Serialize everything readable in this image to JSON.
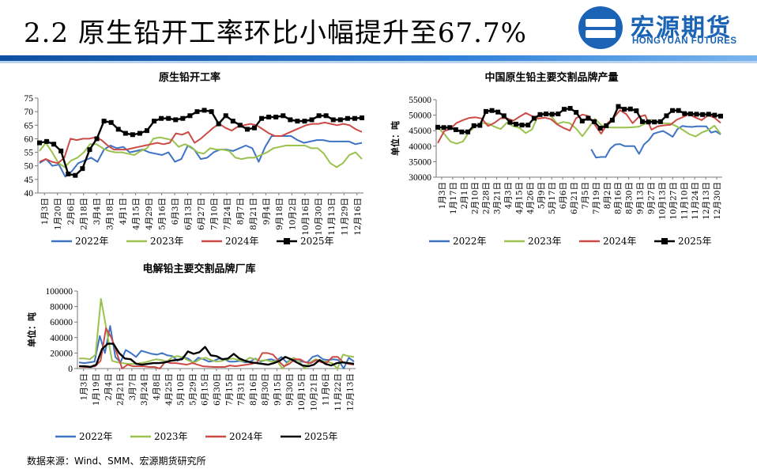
{
  "slide": {
    "title": "2.2 原生铅开工率环比小幅提升至67.7%",
    "source": "数据来源：Wind、SMM、宏源期货研究所"
  },
  "logo": {
    "name_cn": "宏源期货",
    "name_en": "HONGYUAN FUTURES",
    "color": "#1b63b5"
  },
  "colors": {
    "2022年": "#3f73c4",
    "2023年": "#9bc24f",
    "2024年": "#cc4b47",
    "2025年": "#000000"
  },
  "chart_data": [
    {
      "id": "operating-rate",
      "type": "line",
      "title": "原生铅开工率",
      "ylabel": "",
      "ylim": [
        40,
        75
      ],
      "yticks": [
        40,
        45,
        50,
        55,
        60,
        65,
        70,
        75
      ],
      "x_tick_labels": [
        "1月3日",
        "1月20日",
        "2月6日",
        "2月18日",
        "3月4日",
        "3月18日",
        "4月1日",
        "4月15日",
        "4月29日",
        "5月16日",
        "6月3日",
        "6月13日",
        "6月27日",
        "7月10日",
        "7月24日",
        "8月7日",
        "8月21日",
        "9月4日",
        "9月18日",
        "10月2日",
        "10月16日",
        "10月30日",
        "11月13日",
        "11月29日",
        "12月16日"
      ],
      "legend_position": "bottom",
      "series": [
        {
          "name": "2022年",
          "values": [
            51.0,
            52.5,
            50.0,
            50.5,
            46.0,
            48.0,
            51.0,
            52.0,
            53.0,
            51.5,
            56.0,
            57.5,
            56.5,
            57.0,
            55.0,
            55.5,
            56.0,
            55.0,
            54.5,
            54.0,
            55.0,
            51.5,
            52.5,
            57.5,
            56.0,
            52.5,
            53.0,
            55.0,
            56.0,
            56.0,
            55.5,
            56.5,
            57.5,
            56.5,
            51.5,
            57.0,
            61.0,
            61.0,
            61.0,
            61.0,
            59.5,
            58.5,
            59.0,
            59.5,
            59.5,
            59.0,
            59.0,
            59.0,
            59.0,
            58.0,
            58.5
          ]
        },
        {
          "name": "2023年",
          "values": [
            55.5,
            58.5,
            55.0,
            51.0,
            49.5,
            52.0,
            53.0,
            55.0,
            58.0,
            58.0,
            56.5,
            55.5,
            55.0,
            55.0,
            54.5,
            54.0,
            55.5,
            56.5,
            60.0,
            60.5,
            60.0,
            59.5,
            57.0,
            58.0,
            57.0,
            55.0,
            54.5,
            56.5,
            56.0,
            56.0,
            55.5,
            53.0,
            52.5,
            53.0,
            53.0,
            54.0,
            55.0,
            56.5,
            57.0,
            57.5,
            57.5,
            57.5,
            57.5,
            56.5,
            56.5,
            54.5,
            51.0,
            49.5,
            51.0,
            54.0,
            55.0,
            52.5
          ]
        },
        {
          "name": "2024年",
          "values": [
            51.5,
            52.5,
            51.5,
            51.0,
            53.0,
            60.0,
            59.5,
            60.0,
            60.0,
            60.5,
            59.5,
            57.5,
            56.0,
            56.0,
            56.0,
            56.5,
            57.0,
            57.5,
            58.0,
            58.5,
            58.0,
            58.5,
            62.0,
            61.5,
            62.5,
            58.5,
            60.0,
            62.0,
            64.0,
            65.5,
            64.0,
            63.0,
            64.5,
            65.0,
            65.5,
            65.0,
            63.5,
            62.0,
            61.0,
            61.0,
            62.0,
            63.0,
            64.0,
            65.0,
            65.5,
            65.5,
            66.0,
            65.5,
            65.0,
            65.5,
            65.0,
            63.5,
            62.5
          ]
        },
        {
          "name": "2025年",
          "values": [
            58.5,
            59.0,
            58.0,
            55.5,
            47.0,
            46.5,
            49.0,
            56.0,
            60.0,
            66.5,
            66.0,
            63.5,
            62.0,
            61.5,
            62.0,
            63.0,
            66.5,
            67.5,
            67.5,
            67.0,
            67.5,
            68.5,
            70.0,
            70.5,
            70.0,
            65.5,
            68.5,
            66.5,
            65.0,
            63.5,
            64.0,
            67.5,
            68.0,
            68.0,
            68.5,
            67.0,
            66.5,
            66.5,
            67.0,
            68.5,
            68.5,
            67.0,
            67.0,
            67.5,
            67.5,
            67.7
          ]
        }
      ]
    },
    {
      "id": "branded-output",
      "type": "line",
      "title": "中国原生铅主要交割品牌产量",
      "ylabel": "单位：吨",
      "ylim": [
        30000,
        55000
      ],
      "yticks": [
        30000,
        35000,
        40000,
        45000,
        50000,
        55000
      ],
      "x_tick_labels": [
        "1月3日",
        "1月17日",
        "2月1日",
        "2月10日",
        "2月28日",
        "3月21日",
        "4月3日",
        "4月15日",
        "4月26日",
        "5月9日",
        "5月17日",
        "6月6日",
        "6月21日",
        "7月5日",
        "7月19日",
        "8月2日",
        "8月16日",
        "8月30日",
        "9月13日",
        "9月27日",
        "10月13日",
        "10月27日",
        "11月10日",
        "11月24日",
        "12月13日",
        "12月30日"
      ],
      "legend_position": "bottom",
      "series": [
        {
          "name": "2022年",
          "values": [
            null,
            null,
            null,
            null,
            null,
            null,
            null,
            null,
            null,
            null,
            null,
            null,
            null,
            null,
            null,
            null,
            null,
            null,
            null,
            null,
            null,
            null,
            null,
            null,
            null,
            null,
            null,
            null,
            null,
            null,
            null,
            null,
            39000,
            36300,
            36500,
            36500,
            39200,
            40500,
            40700,
            40000,
            40000,
            40000,
            37500,
            40500,
            41900,
            44000,
            44500,
            44900,
            44000,
            43000,
            45500,
            46500,
            46300,
            46200,
            46400,
            46400,
            46400,
            44400,
            44800,
            43800
          ]
        },
        {
          "name": "2023年",
          "values": [
            46000,
            44000,
            41500,
            40800,
            41500,
            44600,
            46400,
            47500,
            47300,
            46300,
            45500,
            47600,
            46400,
            45900,
            44200,
            45400,
            49900,
            50700,
            49800,
            47200,
            47800,
            47400,
            45700,
            43200,
            45900,
            48800,
            46800,
            46000,
            46000,
            46000,
            46000,
            46100,
            46300,
            47300,
            48500,
            47500,
            47400,
            47300,
            46400,
            45200,
            43900,
            43100,
            44400,
            45200,
            46600,
            44000
          ]
        },
        {
          "name": "2024年",
          "values": [
            41000,
            44800,
            45600,
            47500,
            48400,
            49100,
            49300,
            48900,
            46500,
            47500,
            49000,
            49000,
            48200,
            49500,
            50700,
            49700,
            48900,
            49200,
            48700,
            47000,
            45900,
            45000,
            49000,
            50200,
            49700,
            46800,
            44000,
            47400,
            49200,
            51600,
            50300,
            47400,
            49500,
            50000,
            45300,
            46400,
            46700,
            46900,
            48500,
            49400,
            50300,
            49200,
            48400,
            50000,
            49200,
            47500
          ]
        },
        {
          "name": "2025年",
          "values": [
            46100,
            46000,
            46000,
            45300,
            44600,
            44600,
            46600,
            46700,
            51200,
            51500,
            51000,
            49800,
            47700,
            47100,
            46800,
            46800,
            49000,
            50200,
            50400,
            50300,
            50400,
            51900,
            52200,
            50900,
            48100,
            49000,
            47900,
            45800,
            46600,
            48400,
            52800,
            51900,
            52000,
            51400,
            47900,
            47800,
            47800,
            47900,
            49800,
            51500,
            51500,
            50500,
            50400,
            50300,
            50200,
            50300,
            50000,
            49700
          ]
        }
      ]
    },
    {
      "id": "branded-inventory",
      "type": "line",
      "title": "电解铅主要交割品牌厂库",
      "ylabel": "单位：吨",
      "ylim": [
        0,
        100000
      ],
      "yticks": [
        0,
        20000,
        40000,
        60000,
        80000,
        100000
      ],
      "x_tick_labels": [
        "1月3日",
        "1月19日",
        "2月4日",
        "2月21日",
        "3月7日",
        "3月24日",
        "4月8日",
        "4月25日",
        "5月10日",
        "5月29日",
        "6月15日",
        "6月30日",
        "7月15日",
        "7月31日",
        "8月16日",
        "8月30日",
        "9月15日",
        "9月30日",
        "10月15日",
        "10月21日",
        "11月6日",
        "11月22日",
        "12月13日"
      ],
      "legend_position": "bottom",
      "series": [
        {
          "name": "2022年",
          "values": [
            8000,
            7000,
            8000,
            9000,
            42000,
            20000,
            55000,
            15000,
            8000,
            24000,
            20000,
            15000,
            23000,
            21000,
            19000,
            18000,
            20000,
            17000,
            16000,
            10000,
            15000,
            13000,
            8000,
            14000,
            12000,
            9000,
            10000,
            13000,
            12000,
            9000,
            9000,
            10000,
            8000,
            9000,
            13000,
            9000,
            11000,
            12000,
            10000,
            15000,
            8000,
            12000,
            11000,
            9000,
            8000,
            15000,
            17000,
            12000,
            11000,
            12000,
            11000,
            0,
            14000,
            9000
          ]
        },
        {
          "name": "2023年",
          "values": [
            13000,
            13000,
            12000,
            18000,
            90000,
            50000,
            10000,
            8000,
            7000,
            6000,
            6000,
            7000,
            8000,
            10000,
            12000,
            11000,
            9000,
            15000,
            16000,
            14000,
            10000,
            8000,
            12000,
            14000,
            11000,
            9000,
            10000,
            12000,
            13000,
            11000,
            9000,
            14000,
            12000,
            10000,
            11000,
            9000,
            10000,
            0,
            8000,
            14000,
            10000,
            0,
            8000,
            12000,
            10000,
            9000,
            7000,
            0,
            18000,
            16000,
            15000
          ]
        },
        {
          "name": "2024年",
          "values": [
            3000,
            2000,
            2000,
            3000,
            10000,
            52000,
            40000,
            20000,
            0,
            5000,
            3000,
            3000,
            3000,
            2000,
            2000,
            0,
            9000,
            7000,
            7000,
            6000,
            5000,
            7000,
            5000,
            3000,
            2500,
            2000,
            2000,
            2000,
            4000,
            3000,
            4000,
            5000,
            6000,
            8000,
            20000,
            20000,
            18000,
            10000,
            3000,
            6000,
            12000,
            12000,
            8000,
            7000,
            11000,
            8000,
            8000,
            15000,
            15000,
            8000,
            6000,
            5000
          ]
        },
        {
          "name": "2025年",
          "values": [
            3000,
            3000,
            2000,
            5000,
            25000,
            32000,
            32000,
            20000,
            13000,
            12000,
            6000,
            5000,
            6000,
            7000,
            7000,
            8000,
            10000,
            11000,
            12000,
            22000,
            19000,
            21000,
            28000,
            17000,
            16000,
            12000,
            13000,
            19000,
            13000,
            10000,
            8000,
            7000,
            6000,
            5000,
            7000,
            10000,
            15000,
            12000,
            8000,
            4000,
            3000,
            5000,
            11000,
            6000,
            4000,
            7000,
            8000,
            7000,
            6000
          ]
        }
      ]
    }
  ]
}
